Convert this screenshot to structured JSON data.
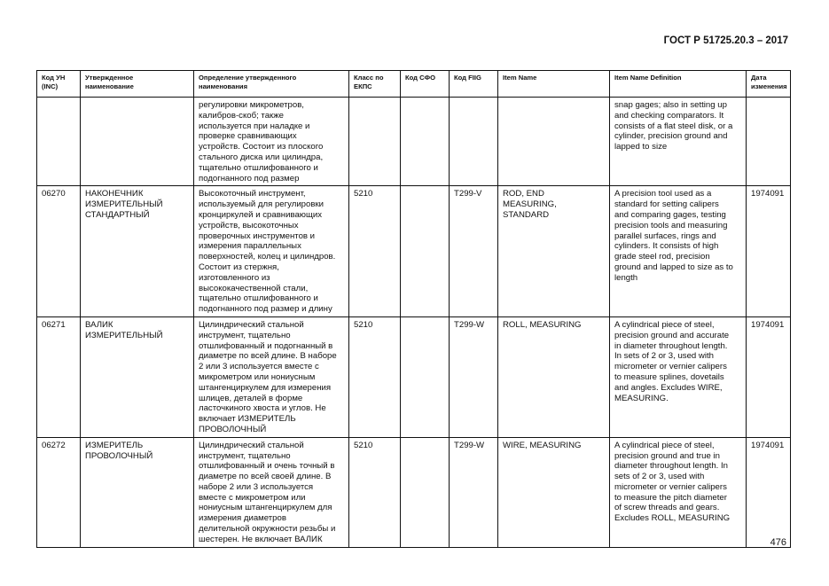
{
  "header": {
    "standard": "ГОСТ Р 51725.20.3 – 2017"
  },
  "table": {
    "columns": [
      "Код УН\n(INC)",
      "Утвержденное\nнаименование",
      "Определение утвержденного\nнаименования",
      "Класс по\nЕКПС",
      "Код СФО",
      "Код FIIG",
      "Item Name",
      "Item Name Definition",
      "Дата\nизменения"
    ],
    "rows": [
      [
        "",
        "",
        "регулировки микрометров,\nкалибров-скоб; также\nиспользуется при наладке и\nпроверке сравнивающих\nустройств. Состоит из плоского\nстального диска или цилиндра,\nтщательно отшлифованного и\nподогнанного под размер",
        "",
        "",
        "",
        "",
        "snap gages; also in setting up\nand checking comparators. It\nconsists of a flat steel disk, or a\ncylinder, precision ground and\nlapped to size",
        ""
      ],
      [
        "06270",
        "НАКОНЕЧНИК\nИЗМЕРИТЕЛЬНЫЙ\nСТАНДАРТНЫЙ",
        "Высокоточный инструмент,\nиспользуемый для регулировки\nкронциркулей и сравнивающих\nустройств, высокоточных\nпроверочных инструментов и\nизмерения параллельных\nповерхностей, колец и цилиндров.\nСостоит из стержня,\nизготовленного из\nвысококачественной стали,\nтщательно отшлифованного и\nподогнанного под размер и длину",
        "5210",
        "",
        "T299-V",
        "ROD, END\nMEASURING,\nSTANDARD",
        "A precision tool used as a\nstandard for setting calipers\nand comparing gages, testing\nprecision tools and measuring\nparallel surfaces, rings and\ncylinders. It consists of high\ngrade steel rod, precision\nground and lapped to size as to\nlength",
        "1974091"
      ],
      [
        "06271",
        "ВАЛИК\nИЗМЕРИТЕЛЬНЫЙ",
        "Цилиндрический стальной\nинструмент, тщательно\nотшлифованный и подогнанный в\nдиаметре по всей длине. В наборе\n2 или 3 используется вместе с\nмикрометром или нониусным\nштангенциркулем для измерения\nшлицев, деталей в форме\nласточкиного хвоста и углов. Не\nвключает ИЗМЕРИТЕЛЬ\nПРОВОЛОЧНЫЙ",
        "5210",
        "",
        "T299-W",
        "ROLL, MEASURING",
        "A cylindrical piece of steel,\nprecision ground and accurate\nin diameter throughout length.\nIn sets of 2 or 3, used with\nmicrometer or vernier calipers\nto measure splines, dovetails\nand angles. Excludes WIRE,\nMEASURING.",
        "1974091"
      ],
      [
        "06272",
        "ИЗМЕРИТЕЛЬ\nПРОВОЛОЧНЫЙ",
        "Цилиндрический стальной\nинструмент, тщательно\nотшлифованный и очень точный в\nдиаметре по всей своей длине. В\nнаборе 2 или 3 используется\nвместе с микрометром или\nнониусным штангенциркулем для\nизмерения диаметров\nделительной окружности резьбы и\nшестерен. Не включает ВАЛИК",
        "5210",
        "",
        "T299-W",
        "WIRE, MEASURING",
        "A cylindrical piece of steel,\nprecision ground and true in\ndiameter throughout length. In\nsets of 2 or 3, used with\nmicrometer or vernier calipers\nto measure the pitch diameter\nof screw threads and gears.\nExcludes ROLL, MEASURING",
        "1974091"
      ]
    ]
  },
  "footer": {
    "page_number": "476"
  }
}
